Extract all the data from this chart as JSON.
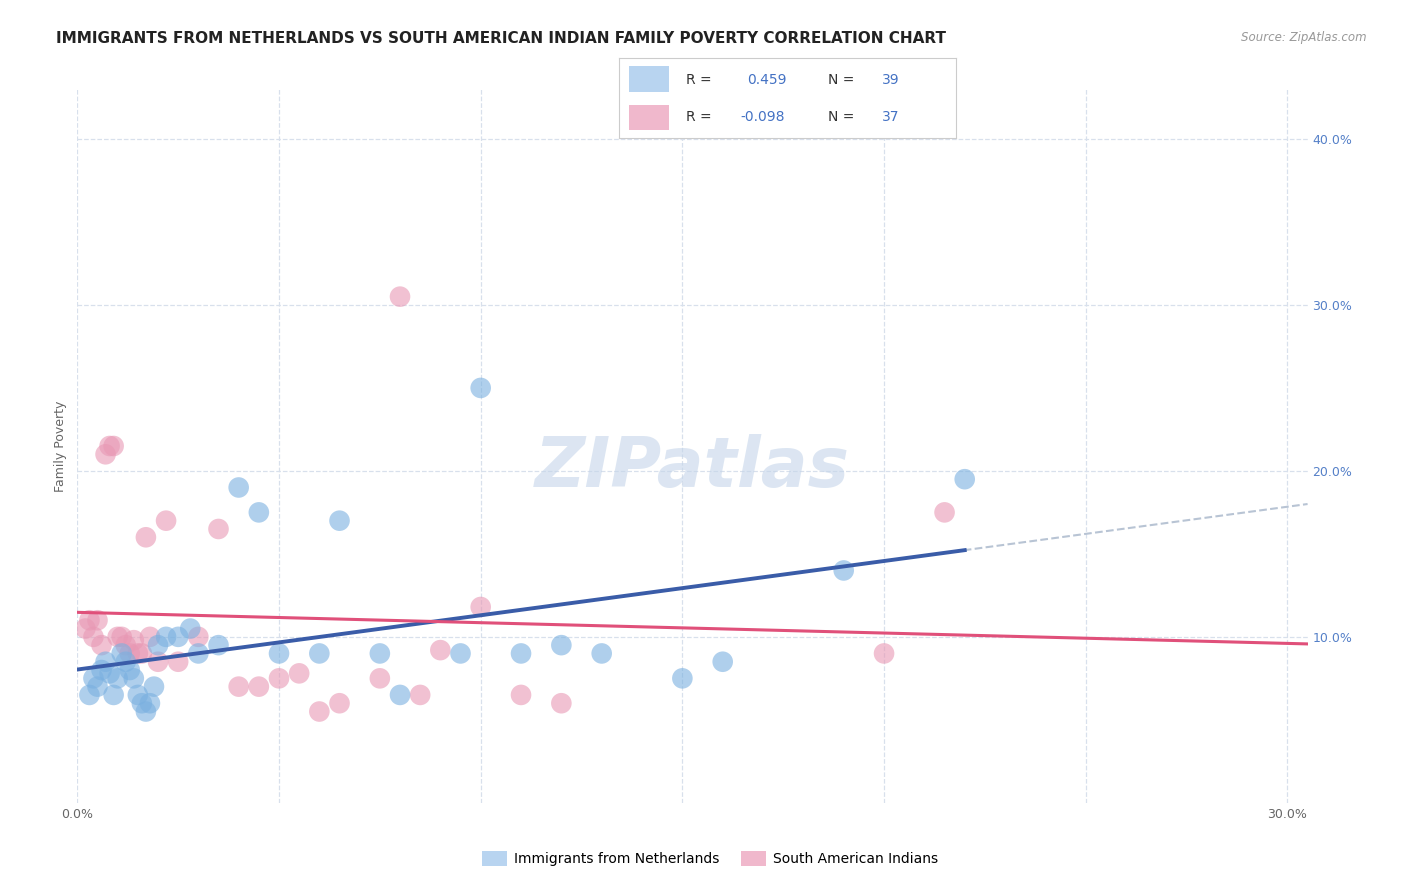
{
  "title": "IMMIGRANTS FROM NETHERLANDS VS SOUTH AMERICAN INDIAN FAMILY POVERTY CORRELATION CHART",
  "source": "Source: ZipAtlas.com",
  "ylabel": "Family Poverty",
  "xlim": [
    0.0,
    0.305
  ],
  "ylim": [
    0.0,
    0.43
  ],
  "background_color": "#ffffff",
  "grid_color": "#d8e0ec",
  "blue_line_color": "#3a5ca8",
  "blue_scatter_color": "#7ab0e0",
  "pink_line_color": "#e0507a",
  "pink_scatter_color": "#e898b4",
  "dashed_color": "#b8c4d4",
  "legend_blue_patch": "#b8d4f0",
  "legend_pink_patch": "#f0b8cc",
  "legend_text_color": "#333333",
  "legend_value_color": "#4472c4",
  "title_color": "#222222",
  "source_color": "#999999",
  "right_tick_color": "#5580c8",
  "blue_x": [
    0.003,
    0.004,
    0.005,
    0.006,
    0.007,
    0.008,
    0.009,
    0.01,
    0.011,
    0.012,
    0.013,
    0.014,
    0.015,
    0.016,
    0.017,
    0.018,
    0.019,
    0.02,
    0.022,
    0.025,
    0.028,
    0.03,
    0.035,
    0.04,
    0.045,
    0.05,
    0.06,
    0.065,
    0.075,
    0.08,
    0.095,
    0.1,
    0.11,
    0.12,
    0.13,
    0.15,
    0.16,
    0.19,
    0.22
  ],
  "blue_y": [
    0.065,
    0.075,
    0.07,
    0.08,
    0.085,
    0.078,
    0.065,
    0.075,
    0.09,
    0.085,
    0.08,
    0.075,
    0.065,
    0.06,
    0.055,
    0.06,
    0.07,
    0.095,
    0.1,
    0.1,
    0.105,
    0.09,
    0.095,
    0.19,
    0.175,
    0.09,
    0.09,
    0.17,
    0.09,
    0.065,
    0.09,
    0.25,
    0.09,
    0.095,
    0.09,
    0.075,
    0.085,
    0.14,
    0.195
  ],
  "pink_x": [
    0.002,
    0.003,
    0.004,
    0.005,
    0.006,
    0.007,
    0.008,
    0.009,
    0.01,
    0.011,
    0.012,
    0.013,
    0.014,
    0.015,
    0.016,
    0.017,
    0.018,
    0.02,
    0.022,
    0.025,
    0.03,
    0.035,
    0.04,
    0.045,
    0.05,
    0.055,
    0.06,
    0.065,
    0.075,
    0.08,
    0.085,
    0.09,
    0.1,
    0.11,
    0.12,
    0.2,
    0.215
  ],
  "pink_y": [
    0.105,
    0.11,
    0.1,
    0.11,
    0.095,
    0.21,
    0.215,
    0.215,
    0.1,
    0.1,
    0.095,
    0.09,
    0.098,
    0.09,
    0.09,
    0.16,
    0.1,
    0.085,
    0.17,
    0.085,
    0.1,
    0.165,
    0.07,
    0.07,
    0.075,
    0.078,
    0.055,
    0.06,
    0.075,
    0.305,
    0.065,
    0.092,
    0.118,
    0.065,
    0.06,
    0.09,
    0.175
  ],
  "watermark": "ZIPatlas",
  "title_fontsize": 11,
  "tick_fontsize": 9,
  "legend_fontsize": 10
}
